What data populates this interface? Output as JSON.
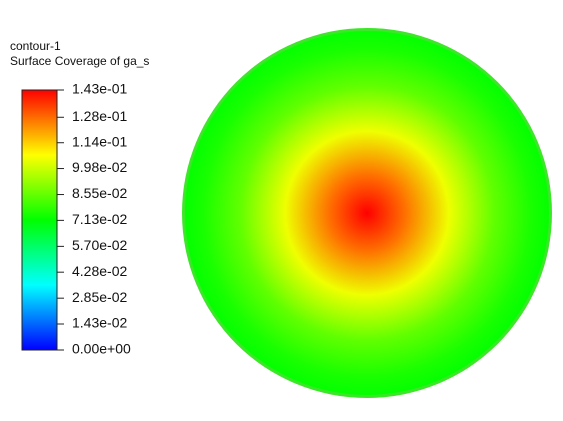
{
  "chart_data": {
    "type": "contour",
    "title": "contour-1",
    "subtitle": "Surface Coverage of ga_s",
    "clim": [
      0,
      0.143
    ],
    "colormap": [
      "#0000ff",
      "#00ffff",
      "#00ff00",
      "#ffff00",
      "#ff0000"
    ],
    "cticks": [
      {
        "value": 0,
        "label": "0.00e+00"
      },
      {
        "value": 0.0143,
        "label": "1.43e-02"
      },
      {
        "value": 0.0285,
        "label": "2.85e-02"
      },
      {
        "value": 0.0428,
        "label": "4.28e-02"
      },
      {
        "value": 0.057,
        "label": "5.70e-02"
      },
      {
        "value": 0.0713,
        "label": "7.13e-02"
      },
      {
        "value": 0.0855,
        "label": "8.55e-02"
      },
      {
        "value": 0.0998,
        "label": "9.98e-02"
      },
      {
        "value": 0.114,
        "label": "1.14e-01"
      },
      {
        "value": 0.128,
        "label": "1.28e-01"
      },
      {
        "value": 0.143,
        "label": "1.43e-01"
      }
    ],
    "r": [
      0,
      0.2,
      0.45,
      0.7,
      0.9,
      1
    ],
    "values": [
      0.143,
      0.128,
      0.105,
      0.085,
      0.075,
      0.072
    ]
  }
}
